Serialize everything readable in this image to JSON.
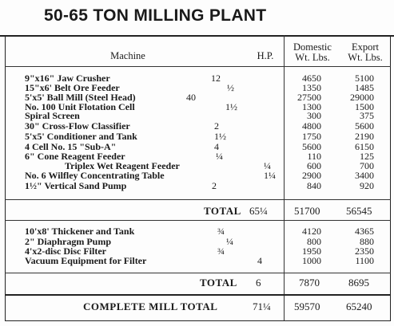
{
  "title": "50-65 TON MILLING PLANT",
  "headers": {
    "machine": "Machine",
    "hp": "H.P.",
    "domestic": [
      "Domestic",
      "Wt. Lbs."
    ],
    "export": [
      "Export",
      "Wt. Lbs."
    ]
  },
  "group1": [
    {
      "name": "9\"x16\" Jaw Crusher",
      "hp": "12",
      "domestic": "4650",
      "export": "5100"
    },
    {
      "name": "15\"x6' Belt Ore Feeder",
      "hp": "½",
      "domestic": "1350",
      "export": "1485"
    },
    {
      "name": "5'x5' Ball Mill (Steel Head)",
      "hp": "40",
      "domestic": "27500",
      "export": "29000"
    },
    {
      "name": "No. 100 Unit Flotation Cell",
      "hp": "1½",
      "domestic": "1300",
      "export": "1500"
    },
    {
      "name": "Spiral Screen",
      "hp": "",
      "domestic": "300",
      "export": "375"
    },
    {
      "name": "30\" Cross-Flow Classifier",
      "hp": "2",
      "domestic": "4800",
      "export": "5600"
    },
    {
      "name": "5'x5' Conditioner and Tank",
      "hp": "1½",
      "domestic": "1750",
      "export": "2190"
    },
    {
      "name": "4 Cell No. 15 \"Sub-A\"",
      "hp": "4",
      "domestic": "5600",
      "export": "6150"
    },
    {
      "name": "6\" Cone Reagent Feeder",
      "hp": "¼",
      "domestic": "110",
      "export": "125"
    },
    {
      "name": "Triplex Wet Reagent Feeder",
      "hp": "¼",
      "domestic": "600",
      "export": "700"
    },
    {
      "name": "No. 6 Wilfley Concentrating Table",
      "hp": "1¼",
      "domestic": "2900",
      "export": "3400"
    },
    {
      "name": "1½\" Vertical Sand Pump",
      "hp": "2",
      "domestic": "840",
      "export": "920"
    }
  ],
  "total1": {
    "label": "TOTAL",
    "hp": "65¼",
    "domestic": "51700",
    "export": "56545"
  },
  "group2": [
    {
      "name": "10'x8' Thickener and Tank",
      "hp": "¾",
      "domestic": "4120",
      "export": "4365"
    },
    {
      "name": "2\" Diaphragm Pump",
      "hp": "¼",
      "domestic": "800",
      "export": "880"
    },
    {
      "name": "4'x2-disc Disc Filter",
      "hp": "¾",
      "domestic": "1950",
      "export": "2350"
    },
    {
      "name": "Vacuum Equipment for Filter",
      "hp": "4",
      "domestic": "1000",
      "export": "1100"
    }
  ],
  "total2": {
    "label": "TOTAL",
    "hp": "6",
    "domestic": "7870",
    "export": "8695"
  },
  "grand_total": {
    "label": "COMPLETE MILL TOTAL",
    "hp": "71¼",
    "domestic": "59570",
    "export": "65240"
  }
}
